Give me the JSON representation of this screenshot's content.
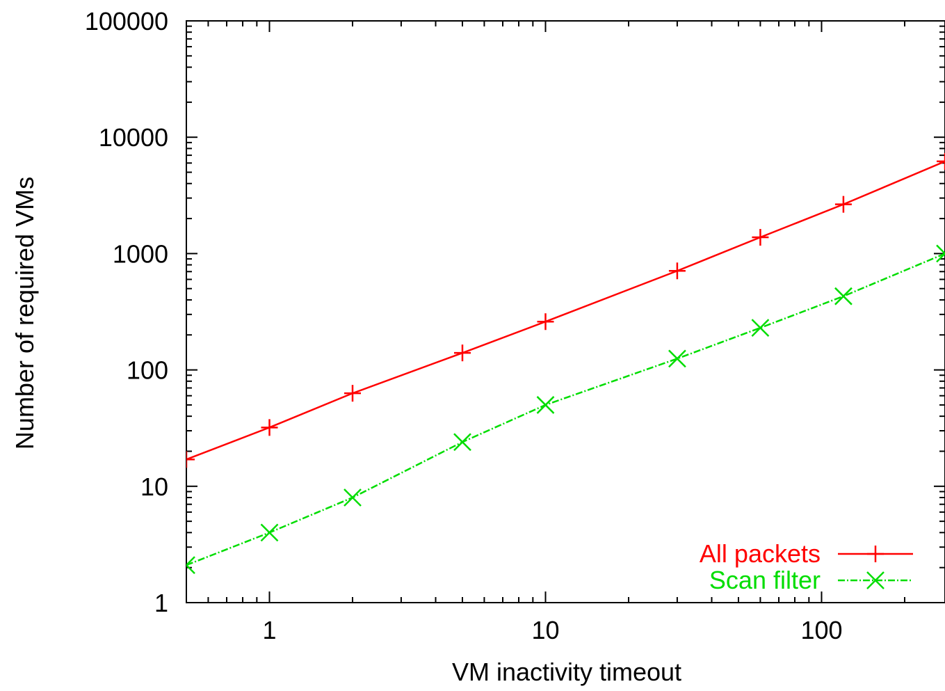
{
  "chart_data": {
    "type": "line",
    "xlabel": "VM inactivity timeout",
    "ylabel": "Number of required VMs",
    "xscale": "log",
    "yscale": "log",
    "xlim": [
      0.5,
      280
    ],
    "ylim": [
      1,
      100000
    ],
    "grid": false,
    "legend_position": "bottom-right",
    "x_ticks": [
      1,
      10,
      100
    ],
    "x_tick_labels": [
      "1",
      "10",
      "100"
    ],
    "y_ticks": [
      1,
      10,
      100,
      1000,
      10000,
      100000
    ],
    "y_tick_labels": [
      "1",
      "10",
      "100",
      "1000",
      "10000",
      "100000"
    ],
    "series": [
      {
        "name": "All packets",
        "color": "#ff0000",
        "marker": "plus",
        "line_style": "solid",
        "points": [
          {
            "x": 0.5,
            "y": 17
          },
          {
            "x": 1,
            "y": 32
          },
          {
            "x": 2,
            "y": 63
          },
          {
            "x": 5,
            "y": 140
          },
          {
            "x": 10,
            "y": 260
          },
          {
            "x": 30,
            "y": 710
          },
          {
            "x": 60,
            "y": 1380
          },
          {
            "x": 120,
            "y": 2650
          },
          {
            "x": 280,
            "y": 6200
          }
        ]
      },
      {
        "name": "Scan filter",
        "color": "#00dd00",
        "marker": "x",
        "line_style": "dashed",
        "points": [
          {
            "x": 0.5,
            "y": 2.1
          },
          {
            "x": 1,
            "y": 4
          },
          {
            "x": 2,
            "y": 8
          },
          {
            "x": 5,
            "y": 24
          },
          {
            "x": 10,
            "y": 50
          },
          {
            "x": 30,
            "y": 125
          },
          {
            "x": 60,
            "y": 230
          },
          {
            "x": 120,
            "y": 430
          },
          {
            "x": 280,
            "y": 1000
          }
        ]
      }
    ]
  }
}
